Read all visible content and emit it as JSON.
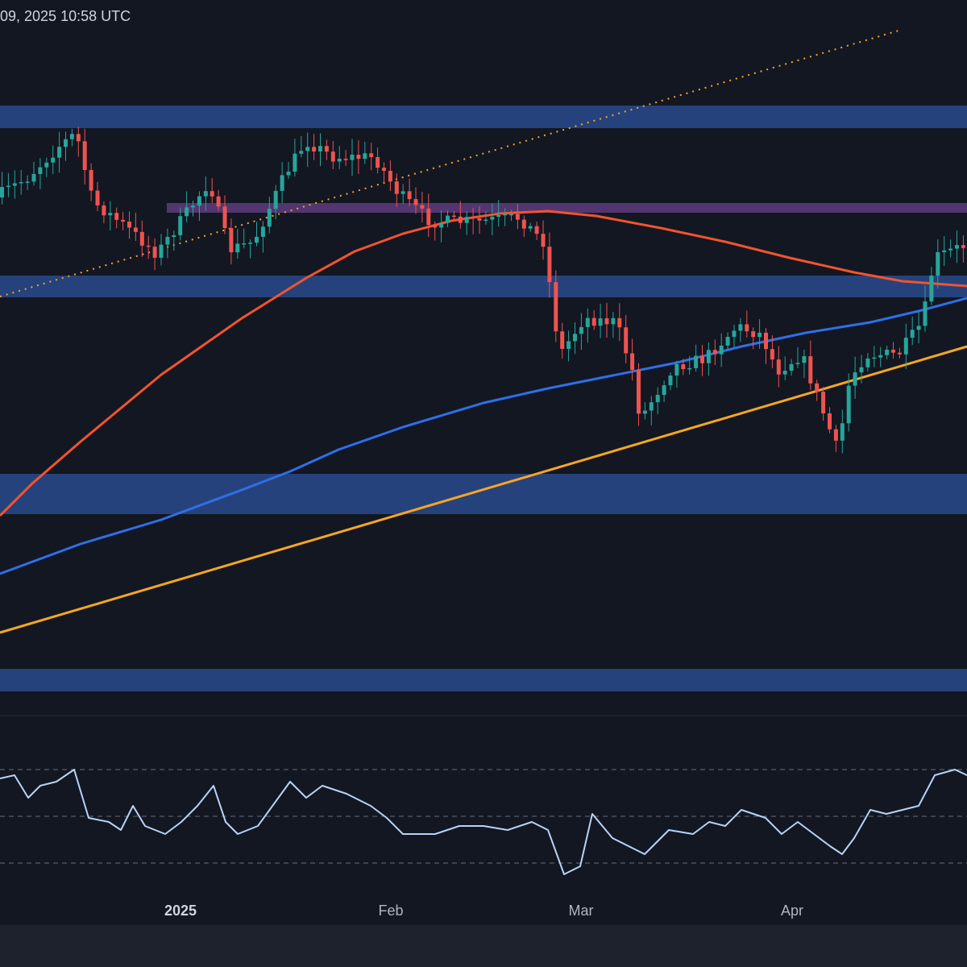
{
  "header": {
    "timestamp": "09, 2025 10:58 UTC"
  },
  "colors": {
    "background": "#131722",
    "zone_blue": "#2a4a8c",
    "zone_purple": "#5b3a78",
    "candle_up": "#26a69a",
    "candle_down": "#ef5350",
    "ma_red": "#f2542d",
    "ma_blue": "#2f6fe8",
    "trendline_orange": "#f5a623",
    "rsi_line": "#b8d3f5"
  },
  "chart_data": {
    "type": "candlestick",
    "x_axis": {
      "labels": [
        "2025",
        "Feb",
        "Mar",
        "Apr"
      ],
      "bold": [
        "2025"
      ]
    },
    "zones": [
      {
        "kind": "resistance",
        "color": "blue"
      },
      {
        "kind": "resistance",
        "color": "purple"
      },
      {
        "kind": "support",
        "color": "blue"
      },
      {
        "kind": "support",
        "color": "blue"
      },
      {
        "kind": "support",
        "color": "blue"
      }
    ],
    "indicators": [
      {
        "kind": "moving-average",
        "color": "red"
      },
      {
        "kind": "moving-average",
        "color": "blue"
      },
      {
        "kind": "trendline",
        "style": "solid",
        "color": "orange"
      },
      {
        "kind": "trendline",
        "style": "dotted",
        "color": "orange"
      }
    ],
    "rsi": {
      "levels": 3,
      "dashed": true
    }
  }
}
